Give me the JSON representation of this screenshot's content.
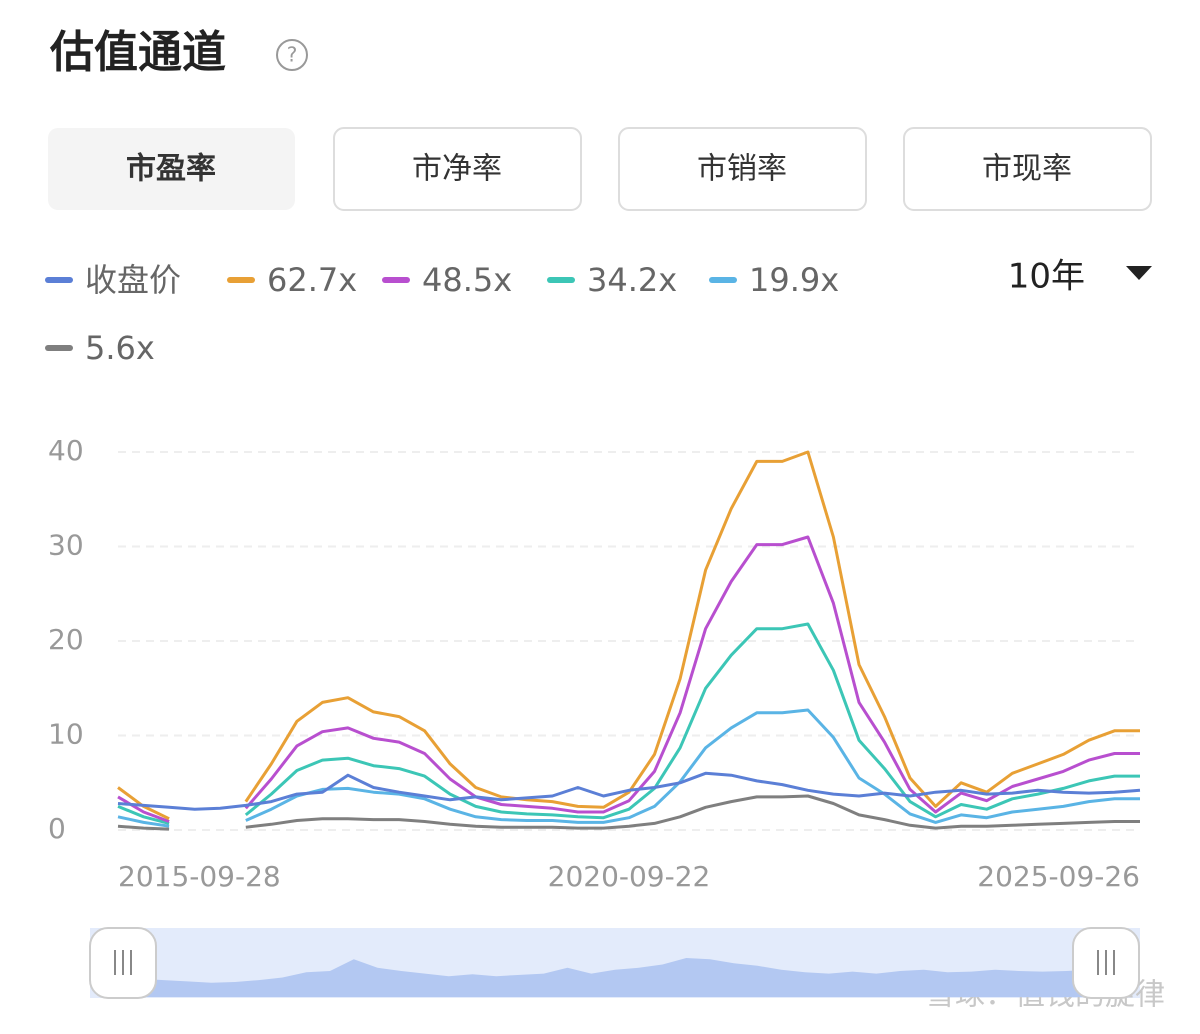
{
  "header": {
    "title": "估值通道"
  },
  "tabs": [
    "市盈率",
    "市净率",
    "市销率",
    "市现率"
  ],
  "active_tab": 0,
  "range": "10年",
  "watermark": "雪球：值钱的旋律",
  "chart_data": {
    "type": "line",
    "categories": [
      "2015-09-28",
      null,
      null,
      null,
      null,
      null,
      null,
      null,
      null,
      null,
      null,
      null,
      null,
      null,
      null,
      null,
      null,
      null,
      null,
      null,
      "2020-09-22",
      null,
      null,
      null,
      null,
      null,
      null,
      null,
      null,
      null,
      null,
      null,
      null,
      null,
      null,
      null,
      null,
      null,
      null,
      null,
      "2025-09-26"
    ],
    "series": [
      {
        "name": "收盘价",
        "color": "#5b7fd6",
        "values": [
          2.8,
          2.6,
          2.4,
          2.2,
          2.3,
          2.6,
          3.0,
          3.8,
          4.0,
          5.8,
          4.5,
          4.0,
          3.6,
          3.2,
          3.5,
          3.2,
          3.4,
          3.6,
          4.5,
          3.6,
          4.2,
          4.5,
          5.0,
          6.0,
          5.8,
          5.2,
          4.8,
          4.2,
          3.8,
          3.6,
          3.9,
          3.6,
          4.0,
          4.2,
          3.8,
          3.9,
          4.2,
          4.0,
          3.9,
          4.0,
          4.2
        ]
      },
      {
        "name": "62.7x",
        "color": "#e8a035",
        "values": [
          4.5,
          2.5,
          1.2,
          null,
          null,
          3.0,
          7.0,
          11.5,
          13.5,
          14.0,
          12.5,
          12.0,
          10.5,
          7.0,
          4.5,
          3.5,
          3.2,
          3.0,
          2.5,
          2.4,
          4.0,
          8.0,
          16.0,
          27.5,
          34.0,
          39.0,
          39.0,
          40.0,
          31.0,
          17.5,
          12.0,
          5.5,
          2.5,
          5.0,
          4.0,
          6.0,
          7.0,
          8.0,
          9.5,
          10.5,
          10.5
        ]
      },
      {
        "name": "48.5x",
        "color": "#b84fcf",
        "values": [
          3.5,
          1.9,
          0.9,
          null,
          null,
          2.3,
          5.4,
          8.9,
          10.4,
          10.8,
          9.7,
          9.3,
          8.1,
          5.4,
          3.5,
          2.7,
          2.5,
          2.3,
          1.9,
          1.9,
          3.1,
          6.2,
          12.4,
          21.3,
          26.3,
          30.2,
          30.2,
          31.0,
          24.0,
          13.5,
          9.3,
          4.3,
          1.9,
          3.9,
          3.1,
          4.6,
          5.4,
          6.2,
          7.4,
          8.1,
          8.1
        ]
      },
      {
        "name": "34.2x",
        "color": "#3cc6b6",
        "values": [
          2.5,
          1.4,
          0.7,
          null,
          null,
          1.6,
          3.8,
          6.3,
          7.4,
          7.6,
          6.8,
          6.5,
          5.7,
          3.8,
          2.5,
          1.9,
          1.7,
          1.6,
          1.4,
          1.3,
          2.2,
          4.4,
          8.7,
          15.0,
          18.5,
          21.3,
          21.3,
          21.8,
          16.9,
          9.5,
          6.5,
          3.0,
          1.4,
          2.7,
          2.2,
          3.3,
          3.8,
          4.4,
          5.2,
          5.7,
          5.7
        ]
      },
      {
        "name": "19.9x",
        "color": "#5ab4e5",
        "values": [
          1.4,
          0.8,
          0.4,
          null,
          null,
          1.0,
          2.2,
          3.6,
          4.3,
          4.4,
          4.0,
          3.8,
          3.3,
          2.2,
          1.4,
          1.1,
          1.0,
          1.0,
          0.8,
          0.8,
          1.3,
          2.5,
          5.1,
          8.7,
          10.8,
          12.4,
          12.4,
          12.7,
          9.8,
          5.5,
          3.8,
          1.7,
          0.8,
          1.6,
          1.3,
          1.9,
          2.2,
          2.5,
          3.0,
          3.3,
          3.3
        ]
      },
      {
        "name": "5.6x",
        "color": "#7f7f7f",
        "values": [
          0.4,
          0.2,
          0.1,
          null,
          null,
          0.3,
          0.6,
          1.0,
          1.2,
          1.2,
          1.1,
          1.1,
          0.9,
          0.6,
          0.4,
          0.3,
          0.3,
          0.3,
          0.2,
          0.2,
          0.4,
          0.7,
          1.4,
          2.4,
          3.0,
          3.5,
          3.5,
          3.6,
          2.8,
          1.6,
          1.1,
          0.5,
          0.2,
          0.4,
          0.4,
          0.5,
          0.6,
          0.7,
          0.8,
          0.9,
          0.9
        ]
      }
    ],
    "ylim": [
      0,
      40
    ],
    "yticks": [
      0,
      10,
      20,
      30,
      40
    ],
    "grid": true
  }
}
